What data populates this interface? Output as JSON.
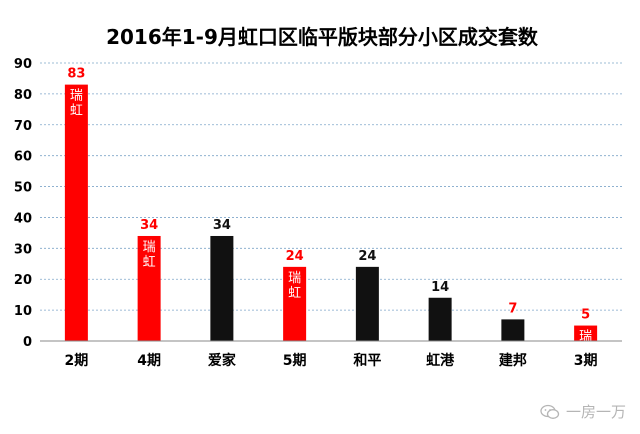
{
  "chart_data": {
    "type": "bar",
    "title": "2016年1-9月虹口区临平版块部分小区成交套数",
    "categories": [
      "2期",
      "4期",
      "爱家",
      "5期",
      "和平",
      "虹港",
      "建邦",
      "3期"
    ],
    "values": [
      83,
      34,
      34,
      24,
      24,
      14,
      7,
      5
    ],
    "bar_colors": [
      "#ff0000",
      "#ff0000",
      "#111111",
      "#ff0000",
      "#111111",
      "#111111",
      "#111111",
      "#ff0000"
    ],
    "value_label_colors": [
      "#ff0000",
      "#ff0000",
      "#111111",
      "#ff0000",
      "#111111",
      "#111111",
      "#ff0000",
      "#ff0000"
    ],
    "bar_inner_labels": [
      "瑞虹",
      "瑞虹",
      "",
      "瑞虹",
      "",
      "",
      "",
      "瑞"
    ],
    "ylim": [
      0,
      90
    ],
    "yticks": [
      0,
      10,
      20,
      30,
      40,
      50,
      60,
      70,
      80,
      90
    ],
    "grid": true,
    "xlabel": "",
    "ylabel": ""
  },
  "watermark": {
    "text": "一房一万",
    "icon": "wechat-icon"
  }
}
